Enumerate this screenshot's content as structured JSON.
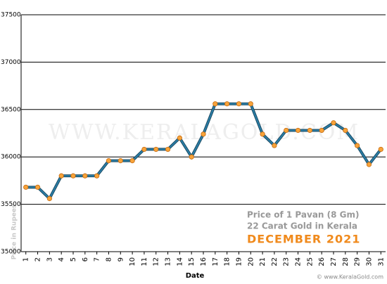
{
  "chart_data": {
    "type": "line",
    "xlabel": "Date",
    "ylabel": "Price in Rupees",
    "watermark": "WWW.KERALAGOLD.COM",
    "caption_lines": [
      "Price of 1 Pavan (8 Gm)",
      "22 Carat Gold in Kerala"
    ],
    "caption_highlight": "DECEMBER 2021",
    "copyright": "© www.KeralaGold.com",
    "x": [
      1,
      2,
      3,
      4,
      5,
      6,
      7,
      8,
      9,
      10,
      11,
      12,
      13,
      14,
      15,
      16,
      17,
      18,
      19,
      20,
      21,
      22,
      23,
      24,
      25,
      26,
      27,
      28,
      29,
      30,
      31
    ],
    "series": [
      {
        "color": "#2a7fa8",
        "marker_color": "#f7a33a",
        "values": [
          35680,
          35680,
          35560,
          35800,
          35800,
          35800,
          35800,
          35960,
          35960,
          35960,
          36080,
          36080,
          36080,
          36200,
          36000,
          36240,
          36560,
          36560,
          36560,
          36560,
          36240,
          36120,
          36280,
          36280,
          36280,
          36280,
          36360,
          36280,
          36120,
          35920,
          36080
        ]
      }
    ],
    "xlim": [
      0.6,
      31.4
    ],
    "xticks": [
      1,
      2,
      3,
      4,
      5,
      6,
      7,
      8,
      9,
      10,
      11,
      12,
      13,
      14,
      15,
      16,
      17,
      18,
      19,
      20,
      21,
      22,
      23,
      24,
      25,
      26,
      27,
      28,
      29,
      30,
      31
    ],
    "ylim": [
      35000,
      37500
    ],
    "yticks": [
      35000,
      35500,
      36000,
      36500,
      37000,
      37500
    ],
    "grid": true
  }
}
